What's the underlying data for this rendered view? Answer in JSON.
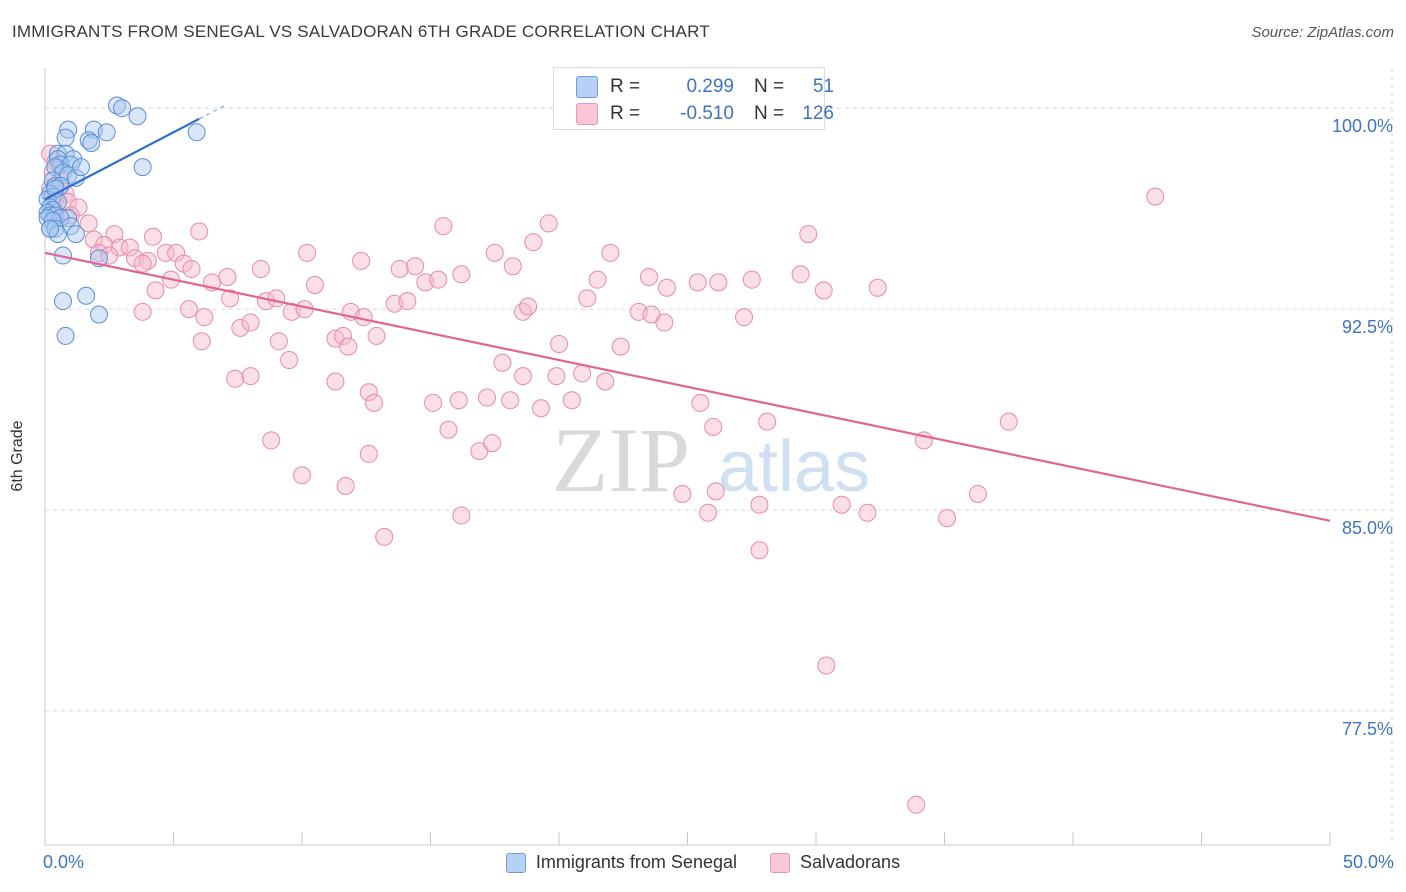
{
  "title": "IMMIGRANTS FROM SENEGAL VS SALVADORAN 6TH GRADE CORRELATION CHART",
  "source": "Source: ZipAtlas.com",
  "watermark": {
    "zip": "ZIP",
    "atlas": "atlas"
  },
  "colors": {
    "blue_fill": "#a8c8f0",
    "blue_stroke": "#5b8fd6",
    "blue_line": "#2f6fd0",
    "pink_fill": "#f5b8cc",
    "pink_stroke": "#e88aa8",
    "pink_line": "#e06592",
    "axis_text": "#3f74c2",
    "grid": "#d8d8d8"
  },
  "stats": {
    "rows": [
      {
        "series": "blue",
        "r_label": "R =",
        "r_value": "0.299",
        "n_label": "N =",
        "n_value": "51"
      },
      {
        "series": "pink",
        "r_label": "R =",
        "r_value": "-0.510",
        "n_label": "N =",
        "n_value": "126"
      }
    ]
  },
  "chart_data": {
    "type": "scatter",
    "title": "IMMIGRANTS FROM SENEGAL VS SALVADORAN 6TH GRADE CORRELATION CHART",
    "xlabel": "",
    "ylabel": "6th Grade",
    "xlim": [
      0,
      50
    ],
    "ylim": [
      72.5,
      101.5
    ],
    "x_tick_labels": {
      "min": "0.0%",
      "max": "50.0%"
    },
    "y_ticks": [
      100.0,
      92.5,
      85.0,
      77.5
    ],
    "y_tick_labels": [
      "100.0%",
      "92.5%",
      "85.0%",
      "77.5%"
    ],
    "grid": true,
    "legend": [
      "Immigrants from Senegal",
      "Salvadorans"
    ],
    "series": [
      {
        "name": "Immigrants from Senegal",
        "color": "blue",
        "trend": {
          "x": [
            0.0,
            6.0
          ],
          "y": [
            96.6,
            99.6
          ]
        },
        "points": [
          [
            2.8,
            100.1
          ],
          [
            3.0,
            100.0
          ],
          [
            3.6,
            99.7
          ],
          [
            0.9,
            99.2
          ],
          [
            1.9,
            99.2
          ],
          [
            2.4,
            99.1
          ],
          [
            5.9,
            99.1
          ],
          [
            0.8,
            98.9
          ],
          [
            1.7,
            98.8
          ],
          [
            1.8,
            98.7
          ],
          [
            0.5,
            98.3
          ],
          [
            0.8,
            98.3
          ],
          [
            0.5,
            98.1
          ],
          [
            1.1,
            98.1
          ],
          [
            0.6,
            97.9
          ],
          [
            1.0,
            97.9
          ],
          [
            0.4,
            97.8
          ],
          [
            3.8,
            97.8
          ],
          [
            0.7,
            97.6
          ],
          [
            0.9,
            97.5
          ],
          [
            1.2,
            97.4
          ],
          [
            0.3,
            97.3
          ],
          [
            0.4,
            97.1
          ],
          [
            0.6,
            97.1
          ],
          [
            0.2,
            96.8
          ],
          [
            0.3,
            96.7
          ],
          [
            0.1,
            96.6
          ],
          [
            0.5,
            96.5
          ],
          [
            0.2,
            96.3
          ],
          [
            0.3,
            96.2
          ],
          [
            0.1,
            96.1
          ],
          [
            0.2,
            96.0
          ],
          [
            0.4,
            96.0
          ],
          [
            0.1,
            95.9
          ],
          [
            0.9,
            95.9
          ],
          [
            0.6,
            95.9
          ],
          [
            0.3,
            95.8
          ],
          [
            1.0,
            95.6
          ],
          [
            0.2,
            95.5
          ],
          [
            0.4,
            95.5
          ],
          [
            1.2,
            95.3
          ],
          [
            0.5,
            95.3
          ],
          [
            0.2,
            95.5
          ],
          [
            0.7,
            94.5
          ],
          [
            2.1,
            94.4
          ],
          [
            1.6,
            93.0
          ],
          [
            0.7,
            92.8
          ],
          [
            2.1,
            92.3
          ],
          [
            0.8,
            91.5
          ],
          [
            0.4,
            97.0
          ],
          [
            1.4,
            97.8
          ]
        ]
      },
      {
        "name": "Salvadorans",
        "color": "pink",
        "trend": {
          "x": [
            0.0,
            50.0
          ],
          "y": [
            94.6,
            84.6
          ]
        },
        "points": [
          [
            0.2,
            98.3
          ],
          [
            0.4,
            98.0
          ],
          [
            0.3,
            97.6
          ],
          [
            0.6,
            97.3
          ],
          [
            0.2,
            97.0
          ],
          [
            0.8,
            96.8
          ],
          [
            0.4,
            96.6
          ],
          [
            0.9,
            96.5
          ],
          [
            1.3,
            96.3
          ],
          [
            1.0,
            96.0
          ],
          [
            1.7,
            95.7
          ],
          [
            2.7,
            95.3
          ],
          [
            1.9,
            95.1
          ],
          [
            4.2,
            95.2
          ],
          [
            6.0,
            95.4
          ],
          [
            2.3,
            94.9
          ],
          [
            2.9,
            94.8
          ],
          [
            3.3,
            94.8
          ],
          [
            2.1,
            94.6
          ],
          [
            2.5,
            94.5
          ],
          [
            4.7,
            94.6
          ],
          [
            5.1,
            94.6
          ],
          [
            3.5,
            94.4
          ],
          [
            4.0,
            94.3
          ],
          [
            3.8,
            94.2
          ],
          [
            5.4,
            94.2
          ],
          [
            5.7,
            94.0
          ],
          [
            8.4,
            94.0
          ],
          [
            10.2,
            94.6
          ],
          [
            12.3,
            94.3
          ],
          [
            13.8,
            94.0
          ],
          [
            14.4,
            94.1
          ],
          [
            15.5,
            95.6
          ],
          [
            16.2,
            93.8
          ],
          [
            17.5,
            94.6
          ],
          [
            18.2,
            94.1
          ],
          [
            19.0,
            95.0
          ],
          [
            19.6,
            95.7
          ],
          [
            21.5,
            93.6
          ],
          [
            22.0,
            94.6
          ],
          [
            23.5,
            93.7
          ],
          [
            24.2,
            93.3
          ],
          [
            25.4,
            93.5
          ],
          [
            26.2,
            93.5
          ],
          [
            27.5,
            93.6
          ],
          [
            14.8,
            93.5
          ],
          [
            15.3,
            93.6
          ],
          [
            10.5,
            93.4
          ],
          [
            6.5,
            93.5
          ],
          [
            7.1,
            93.7
          ],
          [
            4.9,
            93.6
          ],
          [
            4.3,
            93.2
          ],
          [
            5.6,
            92.5
          ],
          [
            7.2,
            92.9
          ],
          [
            8.6,
            92.8
          ],
          [
            9.0,
            92.9
          ],
          [
            9.6,
            92.4
          ],
          [
            11.9,
            92.4
          ],
          [
            12.4,
            92.2
          ],
          [
            13.6,
            92.7
          ],
          [
            14.1,
            92.8
          ],
          [
            18.6,
            92.4
          ],
          [
            18.8,
            92.6
          ],
          [
            21.1,
            92.9
          ],
          [
            23.1,
            92.4
          ],
          [
            23.6,
            92.3
          ],
          [
            24.1,
            92.0
          ],
          [
            27.2,
            92.2
          ],
          [
            29.4,
            93.8
          ],
          [
            29.7,
            95.3
          ],
          [
            30.3,
            93.2
          ],
          [
            32.4,
            93.3
          ],
          [
            43.2,
            96.7
          ],
          [
            3.8,
            92.4
          ],
          [
            6.2,
            92.2
          ],
          [
            7.6,
            91.8
          ],
          [
            8.0,
            92.0
          ],
          [
            10.1,
            92.5
          ],
          [
            11.3,
            91.4
          ],
          [
            11.6,
            91.5
          ],
          [
            12.9,
            91.5
          ],
          [
            9.1,
            91.3
          ],
          [
            6.1,
            91.3
          ],
          [
            11.8,
            91.1
          ],
          [
            20.0,
            91.2
          ],
          [
            22.4,
            91.1
          ],
          [
            17.8,
            90.5
          ],
          [
            9.5,
            90.6
          ],
          [
            7.4,
            89.9
          ],
          [
            8.0,
            90.0
          ],
          [
            11.3,
            89.8
          ],
          [
            18.6,
            90.0
          ],
          [
            19.9,
            90.0
          ],
          [
            20.9,
            90.1
          ],
          [
            21.8,
            89.8
          ],
          [
            12.6,
            89.4
          ],
          [
            12.8,
            89.0
          ],
          [
            15.1,
            89.0
          ],
          [
            16.1,
            89.1
          ],
          [
            17.2,
            89.2
          ],
          [
            18.1,
            89.1
          ],
          [
            19.3,
            88.8
          ],
          [
            20.5,
            89.1
          ],
          [
            25.5,
            89.0
          ],
          [
            26.0,
            88.1
          ],
          [
            28.1,
            88.3
          ],
          [
            34.2,
            87.6
          ],
          [
            37.5,
            88.3
          ],
          [
            8.8,
            87.6
          ],
          [
            12.6,
            87.1
          ],
          [
            15.7,
            88.0
          ],
          [
            16.9,
            87.2
          ],
          [
            17.4,
            87.5
          ],
          [
            10.0,
            86.3
          ],
          [
            11.7,
            85.9
          ],
          [
            24.8,
            85.6
          ],
          [
            26.1,
            85.7
          ],
          [
            27.8,
            85.2
          ],
          [
            31.0,
            85.2
          ],
          [
            36.3,
            85.6
          ],
          [
            32.0,
            84.9
          ],
          [
            25.8,
            84.9
          ],
          [
            16.2,
            84.8
          ],
          [
            35.1,
            84.7
          ],
          [
            13.2,
            84.0
          ],
          [
            27.8,
            83.5
          ],
          [
            30.4,
            79.2
          ],
          [
            33.9,
            74.0
          ]
        ]
      }
    ]
  },
  "legend_bottom": {
    "items": [
      {
        "label": "Immigrants from Senegal",
        "color": "blue"
      },
      {
        "label": "Salvadorans",
        "color": "pink"
      }
    ]
  }
}
